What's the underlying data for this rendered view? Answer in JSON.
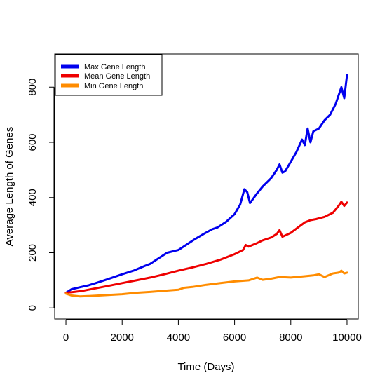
{
  "chart_data": {
    "type": "line",
    "xlabel": "Time (Days)",
    "ylabel": "Average Length of Genes",
    "xlim": [
      -400,
      10400
    ],
    "ylim": [
      -40,
      920
    ],
    "xticks": [
      0,
      2000,
      4000,
      6000,
      8000,
      10000
    ],
    "yticks": [
      0,
      200,
      400,
      600,
      800
    ],
    "xtick_labels": [
      "0",
      "2000",
      "4000",
      "6000",
      "8000",
      "10000"
    ],
    "ytick_labels": [
      "0",
      "200",
      "400",
      "600",
      "800"
    ],
    "grid": false,
    "legend_position": "top-left",
    "series": [
      {
        "name": "Max Gene Length",
        "color": "#0000ee",
        "x": [
          0,
          200,
          500,
          800,
          1000,
          1300,
          1600,
          2000,
          2400,
          2800,
          3000,
          3300,
          3600,
          4000,
          4300,
          4600,
          4900,
          5200,
          5400,
          5700,
          6000,
          6200,
          6350,
          6450,
          6550,
          6800,
          7000,
          7300,
          7500,
          7600,
          7700,
          7800,
          8000,
          8200,
          8400,
          8500,
          8600,
          8700,
          8800,
          9000,
          9200,
          9400,
          9600,
          9800,
          9900,
          10000
        ],
        "y": [
          55,
          68,
          75,
          82,
          88,
          98,
          108,
          122,
          135,
          152,
          160,
          180,
          200,
          210,
          230,
          250,
          268,
          285,
          292,
          312,
          340,
          375,
          430,
          420,
          380,
          415,
          440,
          470,
          500,
          520,
          490,
          495,
          530,
          565,
          610,
          590,
          650,
          600,
          640,
          650,
          680,
          700,
          740,
          800,
          760,
          845
        ]
      },
      {
        "name": "Mean Gene Length",
        "color": "#ee0000",
        "x": [
          0,
          300,
          600,
          1000,
          1500,
          2000,
          2500,
          3000,
          3500,
          4000,
          4500,
          5000,
          5500,
          6000,
          6300,
          6400,
          6500,
          6800,
          7000,
          7300,
          7500,
          7600,
          7700,
          8000,
          8300,
          8500,
          8700,
          8900,
          9200,
          9500,
          9700,
          9800,
          9900,
          10000
        ],
        "y": [
          55,
          58,
          62,
          70,
          80,
          90,
          100,
          110,
          122,
          135,
          147,
          160,
          175,
          195,
          210,
          228,
          222,
          235,
          245,
          255,
          268,
          282,
          258,
          272,
          295,
          310,
          318,
          322,
          330,
          345,
          370,
          385,
          370,
          382
        ]
      },
      {
        "name": "Min Gene Length",
        "color": "#ff8c00",
        "x": [
          0,
          200,
          500,
          800,
          1000,
          1500,
          2000,
          2500,
          3000,
          3500,
          4000,
          4200,
          4500,
          5000,
          5500,
          6000,
          6500,
          6800,
          7000,
          7300,
          7600,
          8000,
          8500,
          8800,
          9000,
          9200,
          9500,
          9700,
          9800,
          9900,
          10000
        ],
        "y": [
          52,
          45,
          42,
          43,
          44,
          47,
          50,
          55,
          58,
          62,
          66,
          73,
          76,
          84,
          90,
          96,
          100,
          110,
          102,
          106,
          112,
          110,
          115,
          118,
          122,
          112,
          125,
          128,
          135,
          125,
          128
        ]
      }
    ]
  }
}
